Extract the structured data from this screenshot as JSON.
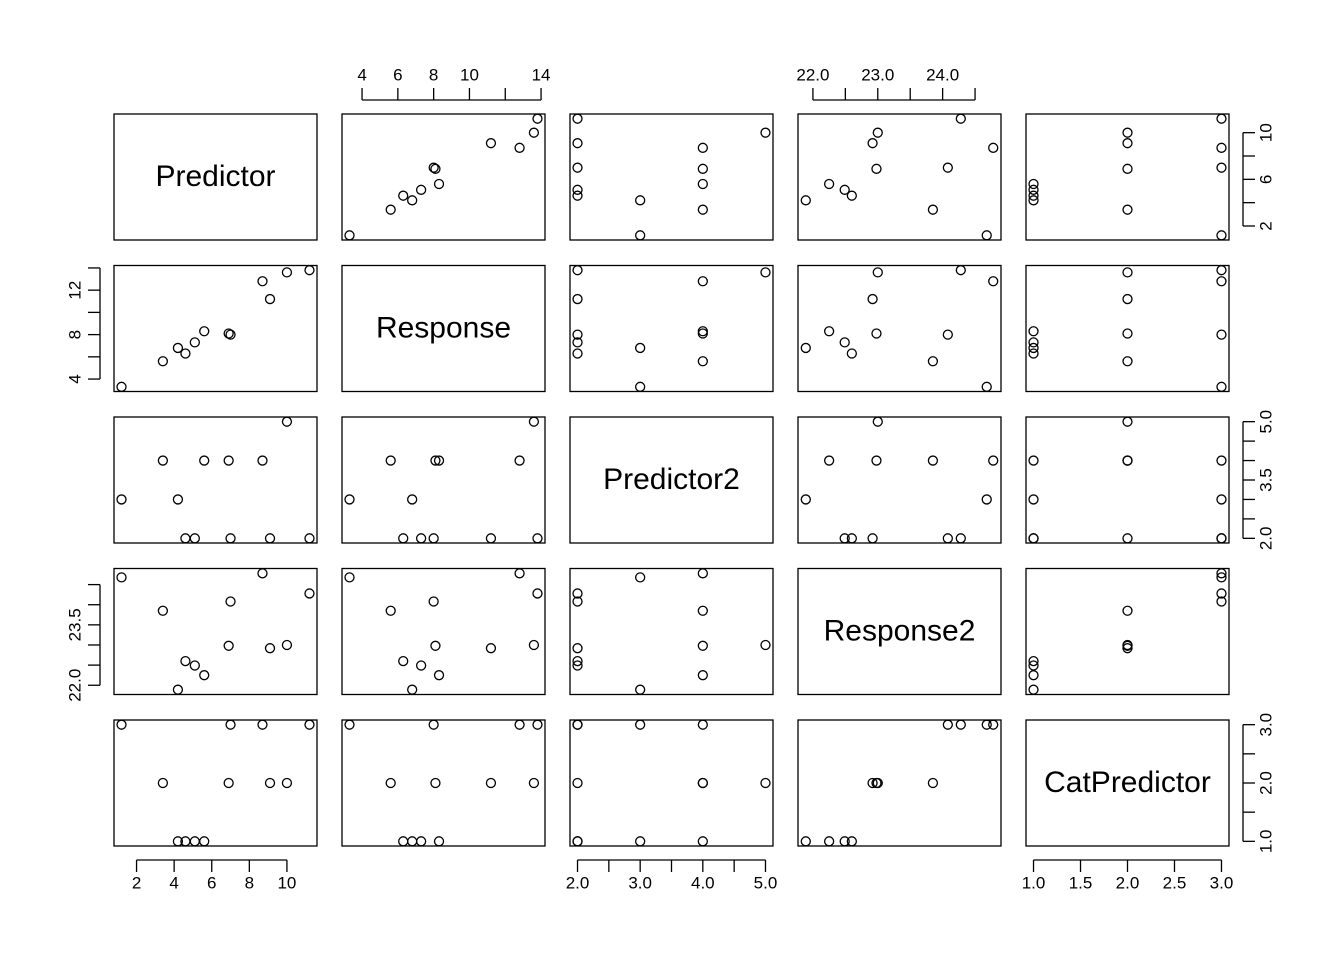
{
  "chart_data": {
    "type": "scatter_matrix",
    "variables": [
      {
        "name": "Predictor",
        "lim": [
          0.8,
          11.6
        ],
        "values": [
          1.2,
          3.4,
          4.2,
          4.6,
          5.1,
          5.6,
          6.9,
          7.0,
          8.7,
          9.1,
          10.0,
          11.2
        ]
      },
      {
        "name": "Response",
        "lim": [
          2.88,
          14.22
        ],
        "values": [
          3.3,
          5.6,
          6.8,
          6.3,
          7.3,
          8.3,
          8.1,
          8.0,
          12.8,
          11.2,
          13.6,
          13.8
        ]
      },
      {
        "name": "Predictor2",
        "lim": [
          1.88,
          5.12
        ],
        "values": [
          3,
          4,
          3,
          2,
          2,
          4,
          4,
          2,
          4,
          2,
          5,
          2
        ]
      },
      {
        "name": "Response2",
        "lim": [
          21.77,
          24.9
        ],
        "values": [
          24.68,
          23.85,
          21.89,
          22.6,
          22.49,
          22.25,
          22.98,
          24.08,
          24.78,
          22.92,
          23.0,
          24.28
        ]
      },
      {
        "name": "CatPredictor",
        "lim": [
          0.92,
          3.08
        ],
        "values": [
          3,
          2,
          1,
          1,
          1,
          1,
          2,
          3,
          3,
          2,
          2,
          3
        ]
      }
    ],
    "axes": [
      {
        "side": "top",
        "panel": 1,
        "ticks": [
          4,
          6,
          8,
          10,
          14
        ],
        "minor_ticks": [
          12
        ]
      },
      {
        "side": "top",
        "panel": 3,
        "ticks": [
          {
            "value": 22,
            "label": "22.0"
          },
          {
            "value": 23,
            "label": "23.0"
          },
          {
            "value": 24,
            "label": "24.0"
          }
        ],
        "minor_ticks": [
          22.5,
          23.5,
          24.5
        ]
      },
      {
        "side": "right",
        "panel": 0,
        "ticks": [
          2,
          6,
          10
        ],
        "minor_ticks": [
          4,
          8
        ]
      },
      {
        "side": "right",
        "panel": 2,
        "ticks": [
          {
            "value": 2,
            "label": "2.0"
          },
          3.5,
          {
            "value": 5,
            "label": "5.0"
          }
        ],
        "minor_ticks": [
          2.5,
          3,
          4,
          4.5
        ]
      },
      {
        "side": "right",
        "panel": 4,
        "ticks": [
          {
            "value": 1,
            "label": "1.0"
          },
          {
            "value": 2,
            "label": "2.0"
          },
          {
            "value": 3,
            "label": "3.0"
          }
        ],
        "minor_ticks": [
          1.5,
          2.5
        ]
      },
      {
        "side": "left",
        "panel": 1,
        "ticks": [
          4,
          8,
          12
        ],
        "minor_ticks": [
          6,
          10,
          14
        ]
      },
      {
        "side": "left",
        "panel": 3,
        "ticks": [
          {
            "value": 22,
            "label": "22.0"
          },
          23.5
        ],
        "minor_ticks": [
          22.5,
          23,
          24,
          24.5
        ]
      },
      {
        "side": "bottom",
        "panel": 0,
        "ticks": [
          2,
          4,
          6,
          8,
          10
        ],
        "minor_ticks": []
      },
      {
        "side": "bottom",
        "panel": 2,
        "ticks": [
          {
            "value": 2,
            "label": "2.0"
          },
          {
            "value": 3,
            "label": "3.0"
          },
          {
            "value": 4,
            "label": "4.0"
          },
          {
            "value": 5,
            "label": "5.0"
          }
        ],
        "minor_ticks": [
          2.5,
          3.5,
          4.5
        ]
      },
      {
        "side": "bottom",
        "panel": 4,
        "ticks": [
          {
            "value": 1,
            "label": "1.0"
          },
          1.5,
          {
            "value": 2,
            "label": "2.0"
          },
          2.5,
          {
            "value": 3,
            "label": "3.0"
          }
        ],
        "minor_ticks": []
      }
    ]
  }
}
